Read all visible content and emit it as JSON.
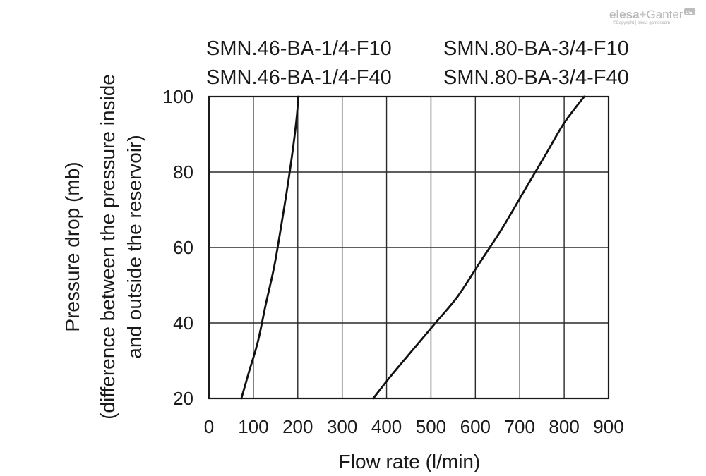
{
  "chart_data": {
    "type": "line",
    "title": "",
    "xlabel": "Flow rate (l/min)",
    "ylabel": "Pressure drop (mb)",
    "ylabel_sub1": "(difference between the pressure inside",
    "ylabel_sub2": "and outside the reservoir)",
    "xlim": [
      0,
      900
    ],
    "ylim": [
      20,
      100
    ],
    "x_ticks": [
      0,
      100,
      200,
      300,
      400,
      500,
      600,
      700,
      800,
      900
    ],
    "y_ticks": [
      20,
      40,
      60,
      80,
      100
    ],
    "grid": true,
    "series": [
      {
        "name": "SMN.46-BA-1/4-F10 / SMN.46-BA-1/4-F40",
        "label_lines": [
          "SMN.46-BA-1/4-F10",
          "SMN.46-BA-1/4-F40"
        ],
        "points": [
          [
            73,
            20
          ],
          [
            90,
            27
          ],
          [
            110,
            35
          ],
          [
            128,
            45
          ],
          [
            147,
            55
          ],
          [
            163,
            66
          ],
          [
            178,
            77
          ],
          [
            190,
            87
          ],
          [
            198,
            95
          ],
          [
            201,
            100
          ]
        ]
      },
      {
        "name": "SMN.80-BA-3/4-F10 / SMN.80-BA-3/4-F40",
        "label_lines": [
          "SMN.80-BA-3/4-F10",
          "SMN.80-BA-3/4-F40"
        ],
        "points": [
          [
            370,
            20
          ],
          [
            410,
            26
          ],
          [
            460,
            33
          ],
          [
            510,
            40
          ],
          [
            560,
            47
          ],
          [
            610,
            56
          ],
          [
            660,
            65
          ],
          [
            710,
            75
          ],
          [
            760,
            85
          ],
          [
            800,
            93
          ],
          [
            845,
            100
          ]
        ]
      }
    ]
  },
  "logo": {
    "brand_left": "elesa",
    "brand_plus": "+",
    "brand_right": "Ganter",
    "copyright": "©Copyright | elesa-ganter.com",
    "mark": "CE"
  }
}
